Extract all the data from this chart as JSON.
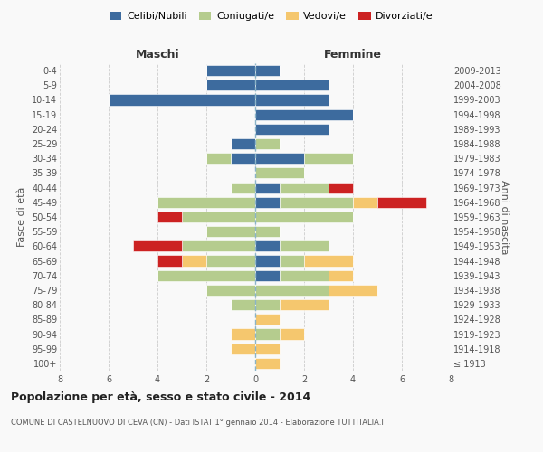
{
  "age_groups": [
    "100+",
    "95-99",
    "90-94",
    "85-89",
    "80-84",
    "75-79",
    "70-74",
    "65-69",
    "60-64",
    "55-59",
    "50-54",
    "45-49",
    "40-44",
    "35-39",
    "30-34",
    "25-29",
    "20-24",
    "15-19",
    "10-14",
    "5-9",
    "0-4"
  ],
  "birth_years": [
    "≤ 1913",
    "1914-1918",
    "1919-1923",
    "1924-1928",
    "1929-1933",
    "1934-1938",
    "1939-1943",
    "1944-1948",
    "1949-1953",
    "1954-1958",
    "1959-1963",
    "1964-1968",
    "1969-1973",
    "1974-1978",
    "1979-1983",
    "1984-1988",
    "1989-1993",
    "1994-1998",
    "1999-2003",
    "2004-2008",
    "2009-2013"
  ],
  "colors": {
    "celibi": "#3d6b9e",
    "coniugati": "#b5cc8e",
    "vedovi": "#f5c76e",
    "divorziati": "#cc2222"
  },
  "maschi": {
    "celibi": [
      0,
      0,
      0,
      0,
      0,
      0,
      0,
      0,
      0,
      0,
      0,
      0,
      0,
      0,
      1,
      1,
      0,
      0,
      6,
      2,
      2
    ],
    "coniugati": [
      0,
      0,
      0,
      0,
      1,
      2,
      4,
      2,
      3,
      2,
      3,
      4,
      1,
      0,
      1,
      0,
      0,
      0,
      0,
      0,
      0
    ],
    "vedovi": [
      0,
      1,
      1,
      0,
      0,
      0,
      0,
      1,
      0,
      0,
      0,
      0,
      0,
      0,
      0,
      0,
      0,
      0,
      0,
      0,
      0
    ],
    "divorziati": [
      0,
      0,
      0,
      0,
      0,
      0,
      0,
      1,
      2,
      0,
      1,
      0,
      0,
      0,
      0,
      0,
      0,
      0,
      0,
      0,
      0
    ]
  },
  "femmine": {
    "celibi": [
      0,
      0,
      0,
      0,
      0,
      0,
      1,
      1,
      1,
      0,
      0,
      1,
      1,
      0,
      2,
      0,
      3,
      4,
      3,
      3,
      1
    ],
    "coniugati": [
      0,
      0,
      1,
      0,
      1,
      3,
      2,
      1,
      2,
      1,
      4,
      3,
      2,
      2,
      2,
      1,
      0,
      0,
      0,
      0,
      0
    ],
    "vedovi": [
      1,
      1,
      1,
      1,
      2,
      2,
      1,
      2,
      0,
      0,
      0,
      1,
      0,
      0,
      0,
      0,
      0,
      0,
      0,
      0,
      0
    ],
    "divorziati": [
      0,
      0,
      0,
      0,
      0,
      0,
      0,
      0,
      0,
      0,
      0,
      2,
      1,
      0,
      0,
      0,
      0,
      0,
      0,
      0,
      0
    ]
  },
  "xlim": 8,
  "title": "Popolazione per età, sesso e stato civile - 2014",
  "subtitle": "COMUNE DI CASTELNUOVO DI CEVA (CN) - Dati ISTAT 1° gennaio 2014 - Elaborazione TUTTITALIA.IT",
  "xlabel_left": "Maschi",
  "xlabel_right": "Femmine",
  "ylabel_left": "Fasce di età",
  "ylabel_right": "Anni di nascita",
  "legend_labels": [
    "Celibi/Nubili",
    "Coniugati/e",
    "Vedovi/e",
    "Divorziati/e"
  ],
  "bg_color": "#f9f9f9",
  "grid_color": "#cccccc"
}
